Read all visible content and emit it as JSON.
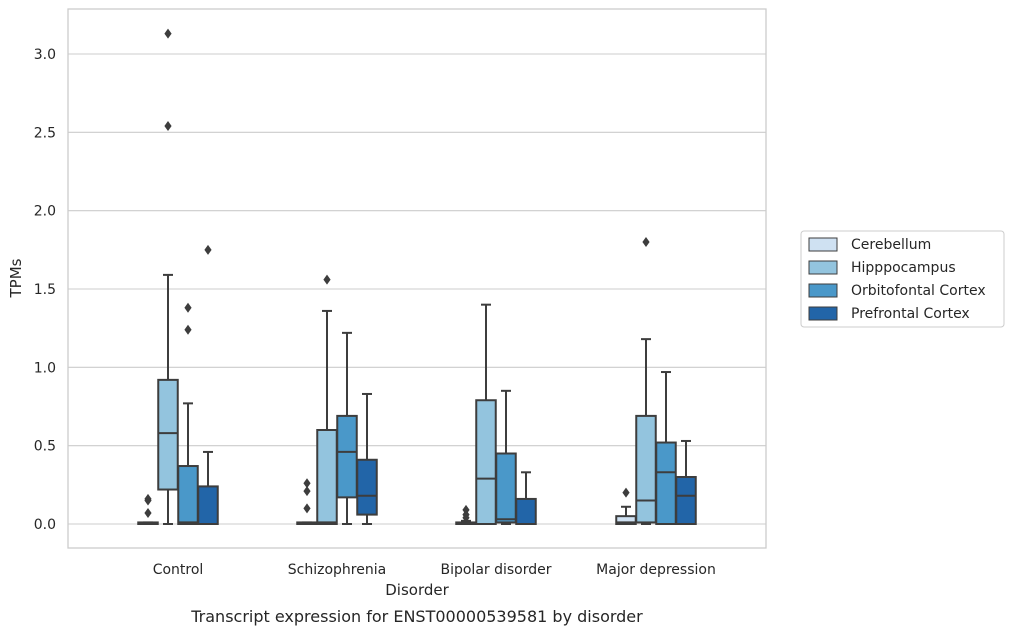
{
  "chart_data": {
    "type": "box",
    "caption": "Transcript expression for ENST00000539581 by disorder",
    "xlabel": "Disorder",
    "ylabel": "TPMs",
    "categories": [
      "Control",
      "Schizophrenia",
      "Bipolar disorder",
      "Major depression"
    ],
    "ylim": [
      -0.15,
      3.3
    ],
    "yticks": [
      "0.0",
      "0.5",
      "1.0",
      "1.5",
      "2.0",
      "2.5",
      "3.0"
    ],
    "grid": "horizontal",
    "legend_position": "right",
    "series": [
      {
        "name": "Cerebellum",
        "color": "#cfe1f2",
        "boxes": [
          {
            "whislo": 0.0,
            "q1": 0.0,
            "med": 0.0,
            "q3": 0.01,
            "whishi": 0.01,
            "fliers": [
              0.07,
              0.15,
              0.16
            ]
          },
          {
            "whislo": 0.0,
            "q1": 0.0,
            "med": 0.0,
            "q3": 0.01,
            "whishi": 0.01,
            "fliers": [
              0.1,
              0.21,
              0.26
            ]
          },
          {
            "whislo": 0.0,
            "q1": 0.0,
            "med": 0.0,
            "q3": 0.01,
            "whishi": 0.02,
            "fliers": [
              0.04,
              0.06,
              0.09
            ]
          },
          {
            "whislo": 0.0,
            "q1": 0.0,
            "med": 0.01,
            "q3": 0.05,
            "whishi": 0.11,
            "fliers": [
              0.2
            ]
          }
        ]
      },
      {
        "name": "Hipppocampus",
        "color": "#93c4de",
        "boxes": [
          {
            "whislo": 0.0,
            "q1": 0.22,
            "med": 0.58,
            "q3": 0.92,
            "whishi": 1.59,
            "fliers": [
              2.54,
              3.13
            ]
          },
          {
            "whislo": 0.0,
            "q1": 0.0,
            "med": 0.01,
            "q3": 0.6,
            "whishi": 1.36,
            "fliers": [
              1.56
            ]
          },
          {
            "whislo": 0.0,
            "q1": 0.0,
            "med": 0.29,
            "q3": 0.79,
            "whishi": 1.4,
            "fliers": []
          },
          {
            "whislo": 0.0,
            "q1": 0.01,
            "med": 0.15,
            "q3": 0.69,
            "whishi": 1.18,
            "fliers": [
              1.8
            ]
          }
        ]
      },
      {
        "name": "Orbitofontal Cortex",
        "color": "#4a98c9",
        "boxes": [
          {
            "whislo": 0.0,
            "q1": 0.0,
            "med": 0.01,
            "q3": 0.37,
            "whishi": 0.77,
            "fliers": [
              1.24,
              1.38
            ]
          },
          {
            "whislo": 0.0,
            "q1": 0.17,
            "med": 0.46,
            "q3": 0.69,
            "whishi": 1.22,
            "fliers": []
          },
          {
            "whislo": 0.0,
            "q1": 0.01,
            "med": 0.03,
            "q3": 0.45,
            "whishi": 0.85,
            "fliers": []
          },
          {
            "whislo": 0.0,
            "q1": 0.0,
            "med": 0.33,
            "q3": 0.52,
            "whishi": 0.97,
            "fliers": []
          }
        ]
      },
      {
        "name": "Prefrontal Cortex",
        "color": "#2265a8",
        "boxes": [
          {
            "whislo": 0.0,
            "q1": 0.0,
            "med": 0.0,
            "q3": 0.24,
            "whishi": 0.46,
            "fliers": [
              1.75
            ]
          },
          {
            "whislo": 0.0,
            "q1": 0.06,
            "med": 0.18,
            "q3": 0.41,
            "whishi": 0.83,
            "fliers": []
          },
          {
            "whislo": 0.0,
            "q1": 0.0,
            "med": 0.0,
            "q3": 0.16,
            "whishi": 0.33,
            "fliers": []
          },
          {
            "whislo": 0.0,
            "q1": 0.0,
            "med": 0.18,
            "q3": 0.3,
            "whishi": 0.53,
            "fliers": []
          }
        ]
      }
    ]
  }
}
